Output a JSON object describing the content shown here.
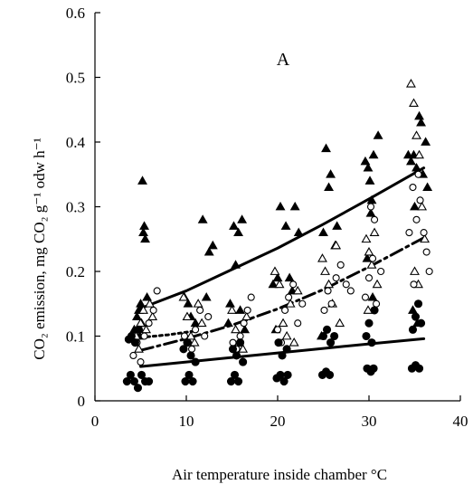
{
  "chart_data": {
    "type": "scatter",
    "panel_label": "A",
    "xlabel": "Air temperature inside chamber °C",
    "ylabel": "CO₂ emission, mg CO₂ g⁻¹ odw h⁻¹",
    "xlim": [
      0,
      40
    ],
    "ylim": [
      0,
      0.6
    ],
    "x_ticks": [
      0,
      10,
      20,
      30,
      40
    ],
    "y_ticks": [
      0,
      0.1,
      0.2,
      0.3,
      0.4,
      0.5,
      0.6
    ],
    "x_tick_labels": [
      "0",
      "10",
      "20",
      "30",
      "40"
    ],
    "y_tick_labels": [
      "0",
      "0.1",
      "0.2",
      "0.3",
      "0.4",
      "0.5",
      "0.6"
    ],
    "grid": false,
    "series": [
      {
        "marker": "filled-triangle",
        "color": "#000000",
        "points": [
          [
            4.3,
            0.11
          ],
          [
            4.6,
            0.13
          ],
          [
            4.8,
            0.14
          ],
          [
            5.0,
            0.15
          ],
          [
            5.1,
            0.12
          ],
          [
            5.3,
            0.26
          ],
          [
            5.4,
            0.27
          ],
          [
            5.5,
            0.25
          ],
          [
            5.2,
            0.34
          ],
          [
            5.7,
            0.16
          ],
          [
            4.9,
            0.1
          ],
          [
            9.8,
            0.16
          ],
          [
            10.2,
            0.15
          ],
          [
            10.5,
            0.13
          ],
          [
            11.0,
            0.12
          ],
          [
            11.8,
            0.28
          ],
          [
            12.5,
            0.23
          ],
          [
            12.9,
            0.24
          ],
          [
            12.2,
            0.16
          ],
          [
            14.8,
            0.15
          ],
          [
            15.2,
            0.27
          ],
          [
            15.7,
            0.26
          ],
          [
            16.1,
            0.28
          ],
          [
            15.4,
            0.21
          ],
          [
            14.6,
            0.12
          ],
          [
            15.9,
            0.14
          ],
          [
            16.4,
            0.11
          ],
          [
            19.5,
            0.18
          ],
          [
            20.0,
            0.19
          ],
          [
            20.3,
            0.3
          ],
          [
            20.9,
            0.27
          ],
          [
            21.3,
            0.19
          ],
          [
            21.6,
            0.17
          ],
          [
            21.9,
            0.3
          ],
          [
            22.3,
            0.26
          ],
          [
            19.8,
            0.11
          ],
          [
            25.0,
            0.26
          ],
          [
            25.3,
            0.39
          ],
          [
            25.6,
            0.33
          ],
          [
            25.8,
            0.35
          ],
          [
            26.3,
            0.24
          ],
          [
            26.5,
            0.27
          ],
          [
            24.8,
            0.1
          ],
          [
            29.6,
            0.37
          ],
          [
            29.9,
            0.36
          ],
          [
            30.1,
            0.34
          ],
          [
            30.3,
            0.31
          ],
          [
            30.5,
            0.38
          ],
          [
            30.2,
            0.29
          ],
          [
            29.8,
            0.22
          ],
          [
            30.4,
            0.16
          ],
          [
            31.0,
            0.41
          ],
          [
            34.3,
            0.38
          ],
          [
            34.6,
            0.37
          ],
          [
            34.9,
            0.38
          ],
          [
            35.2,
            0.36
          ],
          [
            35.5,
            0.44
          ],
          [
            35.7,
            0.43
          ],
          [
            35.9,
            0.35
          ],
          [
            36.2,
            0.4
          ],
          [
            36.4,
            0.33
          ],
          [
            35.0,
            0.3
          ],
          [
            34.8,
            0.14
          ],
          [
            35.3,
            0.12
          ]
        ]
      },
      {
        "marker": "open-triangle",
        "color": "#000000",
        "points": [
          [
            4.5,
            0.1
          ],
          [
            5.0,
            0.12
          ],
          [
            5.3,
            0.14
          ],
          [
            5.6,
            0.11
          ],
          [
            6.0,
            0.15
          ],
          [
            6.3,
            0.13
          ],
          [
            4.8,
            0.08
          ],
          [
            9.7,
            0.16
          ],
          [
            10.1,
            0.13
          ],
          [
            10.5,
            0.1
          ],
          [
            10.9,
            0.09
          ],
          [
            11.3,
            0.15
          ],
          [
            11.7,
            0.12
          ],
          [
            15.0,
            0.14
          ],
          [
            15.4,
            0.11
          ],
          [
            15.8,
            0.09
          ],
          [
            16.2,
            0.08
          ],
          [
            16.6,
            0.13
          ],
          [
            19.7,
            0.2
          ],
          [
            20.2,
            0.18
          ],
          [
            20.6,
            0.12
          ],
          [
            21.0,
            0.1
          ],
          [
            21.4,
            0.15
          ],
          [
            21.8,
            0.09
          ],
          [
            22.2,
            0.17
          ],
          [
            24.9,
            0.22
          ],
          [
            25.2,
            0.2
          ],
          [
            25.6,
            0.18
          ],
          [
            26.0,
            0.15
          ],
          [
            26.4,
            0.24
          ],
          [
            26.8,
            0.12
          ],
          [
            29.7,
            0.25
          ],
          [
            30.0,
            0.23
          ],
          [
            30.3,
            0.21
          ],
          [
            30.6,
            0.26
          ],
          [
            30.9,
            0.18
          ],
          [
            29.9,
            0.14
          ],
          [
            34.6,
            0.49
          ],
          [
            34.9,
            0.46
          ],
          [
            35.2,
            0.41
          ],
          [
            35.5,
            0.38
          ],
          [
            35.8,
            0.3
          ],
          [
            36.1,
            0.25
          ],
          [
            35.0,
            0.2
          ],
          [
            35.4,
            0.18
          ]
        ]
      },
      {
        "marker": "open-circle",
        "color": "#000000",
        "points": [
          [
            4.2,
            0.07
          ],
          [
            4.6,
            0.09
          ],
          [
            5.0,
            0.06
          ],
          [
            5.4,
            0.1
          ],
          [
            5.9,
            0.12
          ],
          [
            6.4,
            0.14
          ],
          [
            6.8,
            0.17
          ],
          [
            9.8,
            0.1
          ],
          [
            10.2,
            0.09
          ],
          [
            10.6,
            0.08
          ],
          [
            11.0,
            0.11
          ],
          [
            11.5,
            0.14
          ],
          [
            12.0,
            0.1
          ],
          [
            12.4,
            0.13
          ],
          [
            15.1,
            0.09
          ],
          [
            15.5,
            0.08
          ],
          [
            15.9,
            0.1
          ],
          [
            16.3,
            0.12
          ],
          [
            16.7,
            0.14
          ],
          [
            17.1,
            0.16
          ],
          [
            20.0,
            0.11
          ],
          [
            20.4,
            0.09
          ],
          [
            20.8,
            0.14
          ],
          [
            21.2,
            0.16
          ],
          [
            21.7,
            0.18
          ],
          [
            22.2,
            0.12
          ],
          [
            22.7,
            0.15
          ],
          [
            25.1,
            0.14
          ],
          [
            25.5,
            0.17
          ],
          [
            25.9,
            0.15
          ],
          [
            26.4,
            0.19
          ],
          [
            26.9,
            0.21
          ],
          [
            27.5,
            0.18
          ],
          [
            28.0,
            0.17
          ],
          [
            29.6,
            0.16
          ],
          [
            30.0,
            0.19
          ],
          [
            30.4,
            0.22
          ],
          [
            30.8,
            0.15
          ],
          [
            31.3,
            0.2
          ],
          [
            30.2,
            0.3
          ],
          [
            30.6,
            0.28
          ],
          [
            34.4,
            0.26
          ],
          [
            34.8,
            0.33
          ],
          [
            35.2,
            0.28
          ],
          [
            35.6,
            0.31
          ],
          [
            36.0,
            0.26
          ],
          [
            36.3,
            0.23
          ],
          [
            36.6,
            0.2
          ],
          [
            35.4,
            0.35
          ],
          [
            34.9,
            0.18
          ]
        ]
      },
      {
        "marker": "filled-circle",
        "color": "#000000",
        "points": [
          [
            3.5,
            0.03
          ],
          [
            3.9,
            0.04
          ],
          [
            4.3,
            0.03
          ],
          [
            4.7,
            0.02
          ],
          [
            5.1,
            0.04
          ],
          [
            5.5,
            0.03
          ],
          [
            5.9,
            0.03
          ],
          [
            4.0,
            0.1
          ],
          [
            4.4,
            0.09
          ],
          [
            4.8,
            0.11
          ],
          [
            3.7,
            0.095
          ],
          [
            9.9,
            0.03
          ],
          [
            10.3,
            0.04
          ],
          [
            10.7,
            0.03
          ],
          [
            9.7,
            0.08
          ],
          [
            10.1,
            0.09
          ],
          [
            10.5,
            0.07
          ],
          [
            11.0,
            0.06
          ],
          [
            14.9,
            0.03
          ],
          [
            15.3,
            0.04
          ],
          [
            15.7,
            0.03
          ],
          [
            15.1,
            0.08
          ],
          [
            15.5,
            0.07
          ],
          [
            15.9,
            0.09
          ],
          [
            16.2,
            0.06
          ],
          [
            19.9,
            0.035
          ],
          [
            20.3,
            0.04
          ],
          [
            20.7,
            0.03
          ],
          [
            21.1,
            0.04
          ],
          [
            20.1,
            0.09
          ],
          [
            20.5,
            0.07
          ],
          [
            21.0,
            0.08
          ],
          [
            24.9,
            0.04
          ],
          [
            25.3,
            0.045
          ],
          [
            25.7,
            0.04
          ],
          [
            25.0,
            0.1
          ],
          [
            25.4,
            0.11
          ],
          [
            25.8,
            0.09
          ],
          [
            26.2,
            0.1
          ],
          [
            29.8,
            0.05
          ],
          [
            30.2,
            0.045
          ],
          [
            30.5,
            0.05
          ],
          [
            29.7,
            0.1
          ],
          [
            30.0,
            0.12
          ],
          [
            30.3,
            0.09
          ],
          [
            30.6,
            0.14
          ],
          [
            34.7,
            0.05
          ],
          [
            35.1,
            0.055
          ],
          [
            35.5,
            0.05
          ],
          [
            34.8,
            0.11
          ],
          [
            35.1,
            0.13
          ],
          [
            35.4,
            0.15
          ],
          [
            35.7,
            0.12
          ]
        ]
      }
    ],
    "fit_lines": [
      {
        "style": "solid",
        "x": [
          5,
          10,
          15,
          20,
          25,
          30,
          36
        ],
        "y": [
          0.143,
          0.17,
          0.203,
          0.236,
          0.273,
          0.312,
          0.36
        ]
      },
      {
        "style": "dash-dot",
        "x": [
          5,
          10,
          15,
          20,
          25,
          30,
          36
        ],
        "y": [
          0.078,
          0.096,
          0.117,
          0.142,
          0.172,
          0.207,
          0.252
        ]
      },
      {
        "style": "dotted",
        "x": [
          5,
          8,
          11
        ],
        "y": [
          0.098,
          0.102,
          0.108
        ]
      },
      {
        "style": "solid",
        "x": [
          5,
          10,
          15,
          20,
          25,
          30,
          36
        ],
        "y": [
          0.053,
          0.06,
          0.067,
          0.074,
          0.081,
          0.088,
          0.096
        ]
      }
    ]
  }
}
